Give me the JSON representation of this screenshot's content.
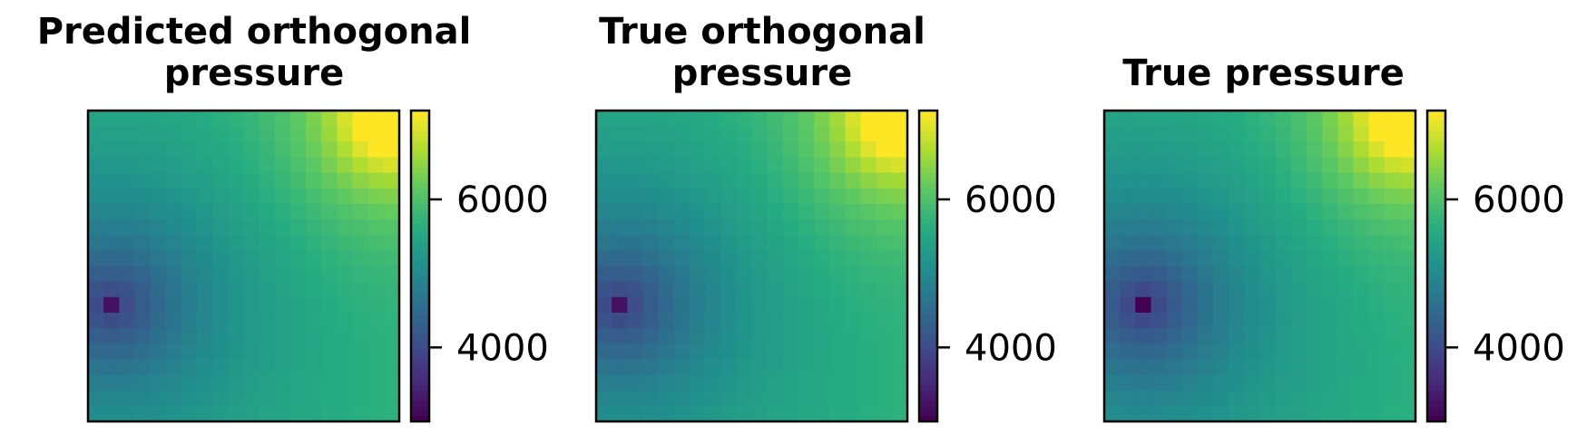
{
  "chart_data": [
    {
      "type": "heatmap",
      "title": "Predicted orthogonal\npressure",
      "colormap": "viridis",
      "colorbar_range": [
        3000,
        7200
      ],
      "colorbar_ticks": [
        "4000",
        "6000"
      ],
      "grid_size": [
        20,
        20
      ],
      "field": {
        "source": [
          1,
          12
        ],
        "source_value": 3200,
        "base": 3700,
        "radial_gain": 2100,
        "corner": [
          19,
          0
        ],
        "corner_value": 7200,
        "corner_gain": 3000,
        "corner_decay": 3.5
      }
    },
    {
      "type": "heatmap",
      "title": "True orthogonal\npressure",
      "colormap": "viridis",
      "colorbar_range": [
        3000,
        7200
      ],
      "colorbar_ticks": [
        "4000",
        "6000"
      ],
      "grid_size": [
        20,
        20
      ],
      "field": {
        "source": [
          1,
          12
        ],
        "source_value": 3200,
        "base": 3700,
        "radial_gain": 2100,
        "corner": [
          19,
          0
        ],
        "corner_value": 7200,
        "corner_gain": 3000,
        "corner_decay": 3.5
      }
    },
    {
      "type": "heatmap",
      "title": "True pressure",
      "colormap": "viridis",
      "colorbar_range": [
        3000,
        7200
      ],
      "colorbar_ticks": [
        "4000",
        "6000"
      ],
      "grid_size": [
        20,
        20
      ],
      "field": {
        "source": [
          2,
          12
        ],
        "source_value": 3000,
        "base": 3650,
        "radial_gain": 2150,
        "corner": [
          19,
          0
        ],
        "corner_value": 7200,
        "corner_gain": 3000,
        "corner_decay": 3.5
      }
    }
  ]
}
